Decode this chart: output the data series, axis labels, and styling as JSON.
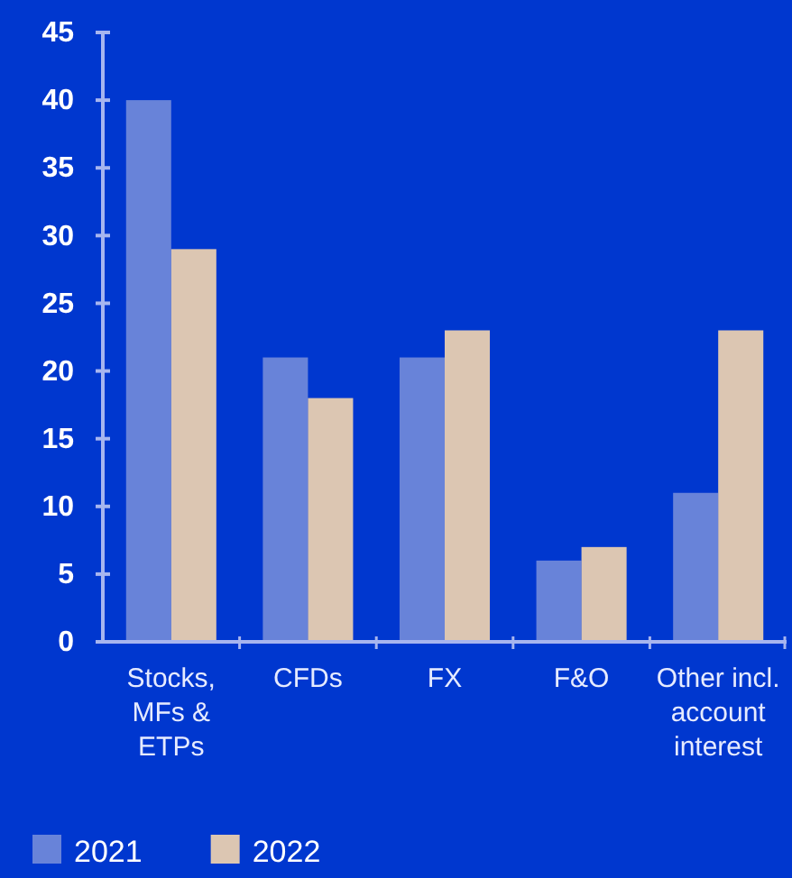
{
  "chart_data": {
    "type": "bar",
    "categories": [
      "Stocks, MFs & ETPs",
      "CFDs",
      "FX",
      "F&O",
      "Other incl. account interest"
    ],
    "series": [
      {
        "name": "2021",
        "color": "#6883d9",
        "values": [
          40,
          21,
          21,
          6,
          11
        ]
      },
      {
        "name": "2022",
        "color": "#dcc6b2",
        "values": [
          29,
          18,
          23,
          7,
          23
        ]
      }
    ],
    "ylim": [
      0,
      45
    ],
    "yticks": [
      0,
      5,
      10,
      15,
      20,
      25,
      30,
      35,
      40,
      45
    ],
    "grid": false,
    "legend": "bottom left"
  }
}
